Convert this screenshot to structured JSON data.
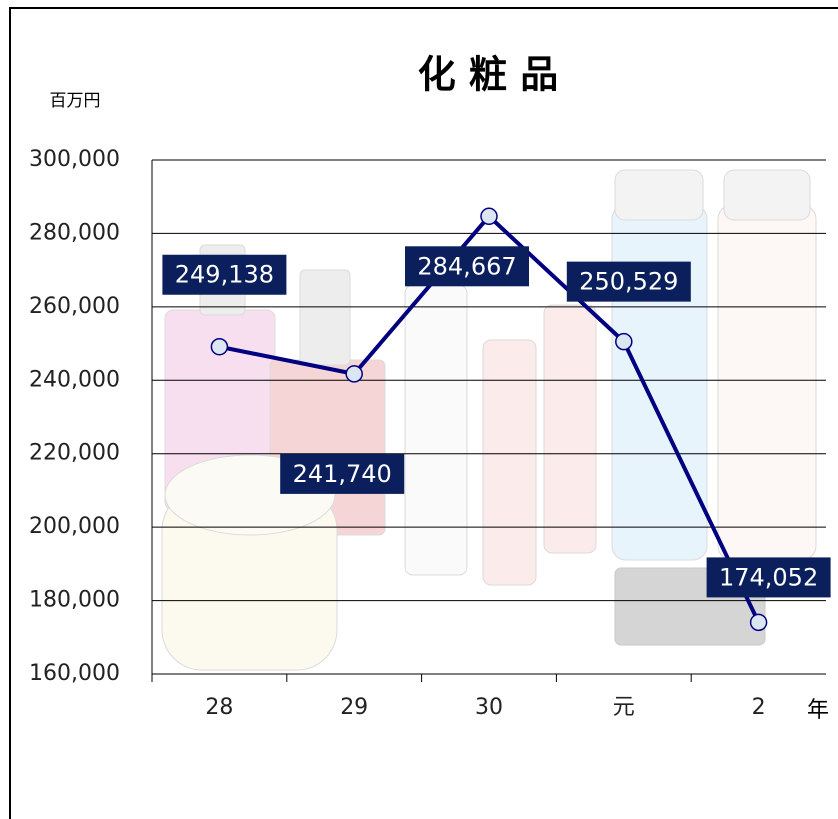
{
  "chart_data": {
    "type": "line",
    "title": "化 粧 品",
    "y_unit": "百万円",
    "x_unit": "年",
    "categories": [
      "28",
      "29",
      "30",
      "元",
      "2"
    ],
    "series": [
      {
        "color": "#000080",
        "values": [
          249138,
          241740,
          284667,
          250529,
          174052
        ],
        "value_labels": [
          "249,138",
          "241,740",
          "284,667",
          "250,529",
          "174,052"
        ]
      }
    ],
    "ylim": [
      160000,
      300000
    ],
    "yticks": [
      {
        "value": 160000,
        "label": "160,000"
      },
      {
        "value": 180000,
        "label": "180,000"
      },
      {
        "value": 200000,
        "label": "200,000"
      },
      {
        "value": 220000,
        "label": "220,000"
      },
      {
        "value": 240000,
        "label": "240,000"
      },
      {
        "value": 260000,
        "label": "260,000"
      },
      {
        "value": 280000,
        "label": "280,000"
      },
      {
        "value": 300000,
        "label": "300,000"
      }
    ],
    "grid": true
  }
}
